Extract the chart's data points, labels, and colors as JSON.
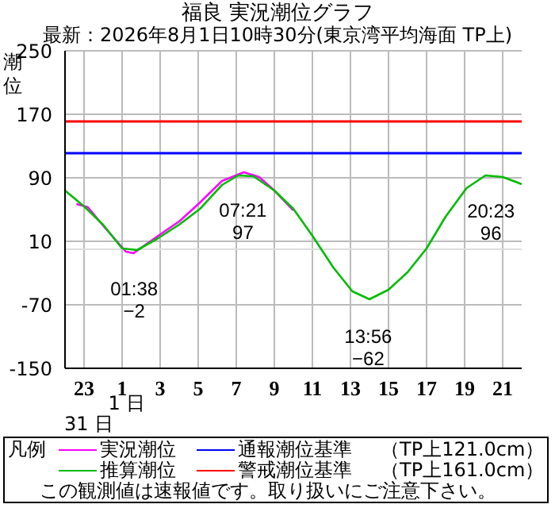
{
  "chart_data": {
    "type": "line",
    "title": "福良 実況潮位グラフ",
    "subtitle": "最新：2026年8月1日10時30分(東京湾平均海面 TP上)",
    "ylabel": "潮位",
    "legend_title": "凡例",
    "series": [
      {
        "name": "実況潮位",
        "color": "#ff00ff",
        "x": [
          "2026-07-31T22:36",
          "2026-07-31T23:12",
          "2026-08-01T00:06",
          "2026-08-01T01:12",
          "2026-08-01T01:36",
          "2026-08-01T02:54",
          "2026-08-01T04:00",
          "2026-08-01T05:06",
          "2026-08-01T06:15",
          "2026-08-01T07:24",
          "2026-08-01T08:12",
          "2026-08-01T09:00",
          "2026-08-01T10:00"
        ],
        "values": [
          57,
          53,
          27,
          -3,
          -5,
          17,
          35,
          59,
          86,
          97,
          91,
          74,
          49
        ]
      },
      {
        "name": "推算潮位",
        "color": "#00bb00",
        "x": [
          "2026-07-31T22:00",
          "2026-07-31T23:00",
          "2026-08-01T00:00",
          "2026-08-01T01:00",
          "2026-08-01T01:48",
          "2026-08-01T02:54",
          "2026-08-01T04:00",
          "2026-08-01T05:06",
          "2026-08-01T06:15",
          "2026-08-01T07:06",
          "2026-08-01T07:54",
          "2026-08-01T09:00",
          "2026-08-01T10:00",
          "2026-08-01T11:00",
          "2026-08-01T12:06",
          "2026-08-01T13:06",
          "2026-08-01T14:00",
          "2026-08-01T15:00",
          "2026-08-01T16:00",
          "2026-08-01T17:00",
          "2026-08-01T18:00",
          "2026-08-01T19:06",
          "2026-08-01T20:06",
          "2026-08-01T21:00",
          "2026-08-01T22:00"
        ],
        "values": [
          74,
          54,
          31,
          1,
          -1,
          14,
          31,
          51,
          81,
          93,
          92,
          74,
          51,
          17,
          -23,
          -53,
          -63,
          -51,
          -29,
          1,
          41,
          77,
          93,
          91,
          82
        ]
      }
    ],
    "xlim": [
      "2026-07-31T22:00",
      "2026-08-01T22:00"
    ],
    "xticks": [
      {
        "value": "2026-07-31T23:00",
        "label": "23"
      },
      {
        "value": "2026-08-01T01:00",
        "label": "1"
      },
      {
        "value": "2026-08-01T03:00",
        "label": "3"
      },
      {
        "value": "2026-08-01T05:00",
        "label": "5"
      },
      {
        "value": "2026-08-01T07:00",
        "label": "7"
      },
      {
        "value": "2026-08-01T09:00",
        "label": "9"
      },
      {
        "value": "2026-08-01T11:00",
        "label": "11"
      },
      {
        "value": "2026-08-01T13:00",
        "label": "13"
      },
      {
        "value": "2026-08-01T15:00",
        "label": "15"
      },
      {
        "value": "2026-08-01T17:00",
        "label": "17"
      },
      {
        "value": "2026-08-01T19:00",
        "label": "19"
      },
      {
        "value": "2026-08-01T21:00",
        "label": "21"
      }
    ],
    "ylim": [
      -150,
      250
    ],
    "yticks": [
      -150,
      -70,
      10,
      90,
      170,
      250
    ],
    "ref_lines": [
      {
        "axis": "y",
        "value": 121,
        "label": "通報潮位基準",
        "color": "#0000ff"
      },
      {
        "axis": "y",
        "value": 161,
        "label": "警戒潮位基準",
        "color": "#ff0000"
      },
      {
        "axis": "y",
        "value": 0,
        "color": "#dddddd"
      }
    ],
    "annotations": [
      {
        "text": "01:38\n−2",
        "x": "2026-08-01T01:38",
        "y": -2
      },
      {
        "text": "07:21\n97",
        "x": "2026-08-01T07:21",
        "y": 97
      },
      {
        "text": "13:56\n−62",
        "x": "2026-08-01T13:56",
        "y": -62
      },
      {
        "text": "20:23\n96",
        "x": "2026-08-01T20:23",
        "y": 96
      },
      "1 日",
      "31 日",
      "（TP上121.0cm）",
      "（TP上161.0cm）",
      "この観測値は速報値です。取り扱いにご注意下さい。"
    ],
    "grid": true,
    "legend": "bottom",
    "marker": "none",
    "line_style": "solid"
  }
}
